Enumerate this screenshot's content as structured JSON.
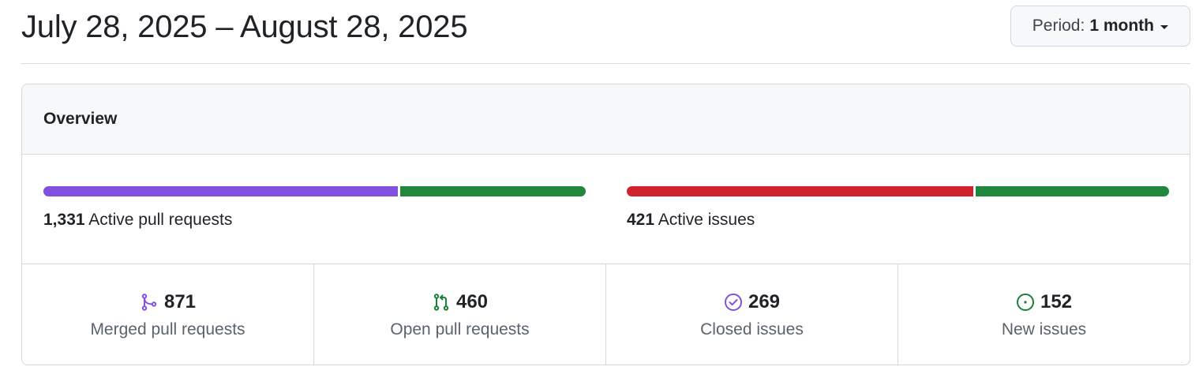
{
  "header": {
    "title": "July 28, 2025 – August 28, 2025",
    "period_label": "Period:",
    "period_value": "1 month"
  },
  "overview": {
    "title": "Overview",
    "pull_requests": {
      "count": "1,331",
      "label": "Active pull requests",
      "merged_fraction": 0.654,
      "open_fraction": 0.346
    },
    "issues": {
      "count": "421",
      "label": "Active issues",
      "closed_fraction": 0.639,
      "new_fraction": 0.361
    },
    "stats": [
      {
        "icon": "git-merge-icon",
        "value": "871",
        "label": "Merged pull requests",
        "color": "#8250df"
      },
      {
        "icon": "git-pull-request-icon",
        "value": "460",
        "label": "Open pull requests",
        "color": "#1a7f37"
      },
      {
        "icon": "issue-closed-icon",
        "value": "269",
        "label": "Closed issues",
        "color": "#8250df"
      },
      {
        "icon": "issue-opened-icon",
        "value": "152",
        "label": "New issues",
        "color": "#1a7f37"
      }
    ]
  },
  "colors": {
    "merged": "#8250df",
    "open": "#1f883d",
    "closed_issues": "#cf222e",
    "new_issues": "#1f883d"
  }
}
